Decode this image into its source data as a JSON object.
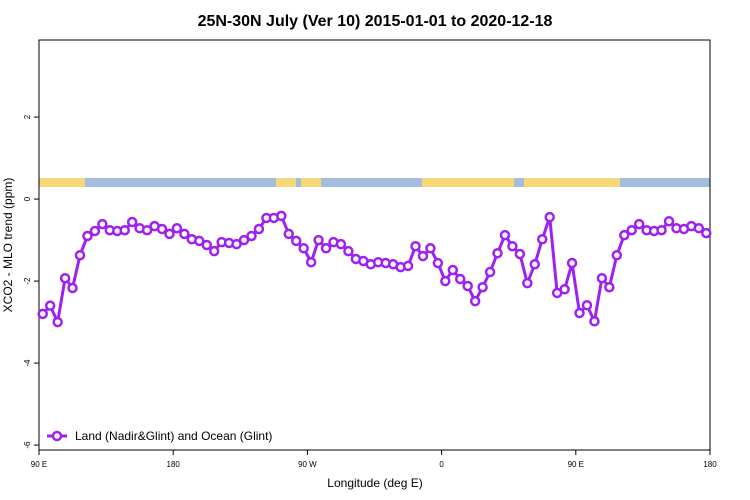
{
  "chart_data": {
    "type": "line",
    "title": "25N-30N July (Ver 10)   2015-01-01 to 2020-12-18",
    "xlabel": "Longitude (deg E)",
    "ylabel": "XCO2 - MLO trend (ppm)",
    "x": [
      92.5,
      97.5,
      102.5,
      107.5,
      112.5,
      117.5,
      122.5,
      127.5,
      132.5,
      137.5,
      142.5,
      147.5,
      152.5,
      157.5,
      162.5,
      167.5,
      172.5,
      177.5,
      182.5,
      187.5,
      192.5,
      197.5,
      202.5,
      207.5,
      212.5,
      217.5,
      222.5,
      227.5,
      232.5,
      237.5,
      242.5,
      247.5,
      252.5,
      257.5,
      262.5,
      267.5,
      272.5,
      277.5,
      282.5,
      287.5,
      292.5,
      297.5,
      302.5,
      307.5,
      312.5,
      317.5,
      322.5,
      327.5,
      332.5,
      337.5,
      342.5,
      347.5,
      352.5,
      357.5,
      362.5,
      367.5,
      372.5,
      377.5,
      382.5,
      387.5,
      392.5,
      397.5,
      402.5,
      407.5,
      412.5,
      417.5,
      422.5,
      427.5,
      432.5,
      437.5,
      442.5,
      447.5,
      452.5,
      457.5,
      462.5,
      467.5,
      472.5,
      477.5,
      482.5,
      487.5,
      492.5,
      497.5,
      502.5,
      507.5,
      512.5,
      517.5,
      522.5,
      527.5,
      532.5,
      537.5
    ],
    "series": [
      {
        "name": "Land (Nadir&Glint) and Ocean (Glint)",
        "color": "#a020f0",
        "values": [
          -2.8,
          -2.6,
          -3.0,
          -1.93,
          -2.17,
          -1.37,
          -0.9,
          -0.78,
          -0.61,
          -0.76,
          -0.78,
          -0.76,
          -0.56,
          -0.71,
          -0.76,
          -0.66,
          -0.73,
          -0.85,
          -0.71,
          -0.85,
          -0.98,
          -1.02,
          -1.12,
          -1.27,
          -1.05,
          -1.07,
          -1.1,
          -1.0,
          -0.9,
          -0.73,
          -0.46,
          -0.46,
          -0.41,
          -0.85,
          -1.02,
          -1.2,
          -1.54,
          -1.0,
          -1.2,
          -1.05,
          -1.1,
          -1.27,
          -1.46,
          -1.51,
          -1.59,
          -1.54,
          -1.56,
          -1.59,
          -1.66,
          -1.63,
          -1.15,
          -1.39,
          -1.2,
          -1.56,
          -2.0,
          -1.73,
          -1.95,
          -2.12,
          -2.49,
          -2.15,
          -1.78,
          -1.32,
          -0.88,
          -1.15,
          -1.34,
          -2.05,
          -1.59,
          -0.98,
          -0.44,
          -2.29,
          -2.2,
          -1.56,
          -2.78,
          -2.59,
          -2.98,
          -1.93,
          -2.15,
          -1.37,
          -0.88,
          -0.76,
          -0.61,
          -0.76,
          -0.78,
          -0.76,
          -0.54,
          -0.71,
          -0.73,
          -0.66,
          -0.71,
          -0.83
        ]
      }
    ],
    "xlim": [
      90,
      540
    ],
    "xticks": [
      {
        "value": 90,
        "label": "90 E"
      },
      180,
      {
        "value": 270,
        "label": "90 W"
      },
      {
        "value": 360,
        "label": "0"
      },
      {
        "value": 450,
        "label": "90 E"
      },
      {
        "value": 540,
        "label": "180"
      }
    ],
    "ylim": [
      -6.12,
      3.88
    ],
    "yticks": [
      2,
      0,
      -2,
      -4,
      -6
    ],
    "legend": "bottom-left"
  }
}
